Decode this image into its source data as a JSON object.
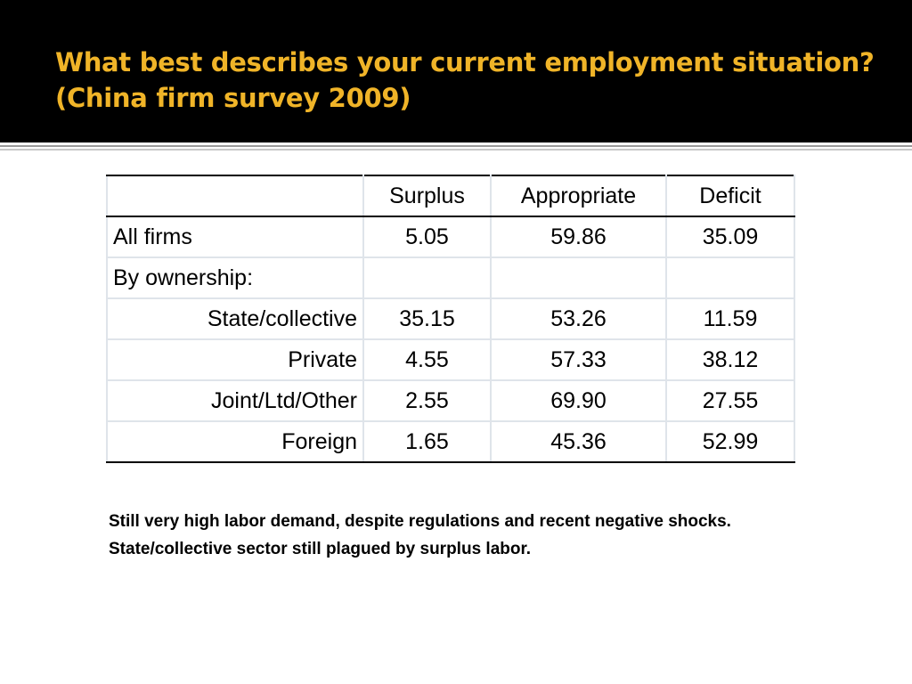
{
  "slide": {
    "title_line1": "What best describes your current employment situation?",
    "title_line2": "(China firm survey 2009)",
    "colors": {
      "title_bar": "#000000",
      "title_text": "#f0b428"
    }
  },
  "table": {
    "headers": [
      "",
      "Surplus",
      "Appropriate",
      "Deficit"
    ],
    "rows": [
      {
        "label": "All firms",
        "values": [
          "5.05",
          "59.86",
          "35.09"
        ]
      },
      {
        "label": "By ownership:",
        "values": [
          "",
          "",
          ""
        ]
      },
      {
        "label": "State/collective",
        "values": [
          "35.15",
          "53.26",
          "11.59"
        ]
      },
      {
        "label": "Private",
        "values": [
          "4.55",
          "57.33",
          "38.12"
        ]
      },
      {
        "label": "Joint/Ltd/Other",
        "values": [
          "2.55",
          "69.90",
          "27.55"
        ]
      },
      {
        "label": "Foreign",
        "values": [
          "1.65",
          "45.36",
          "52.99"
        ]
      }
    ]
  },
  "notes": {
    "line1": "Still very high labor demand, despite regulations and recent negative shocks.",
    "line2": "State/collective sector still plagued by surplus labor."
  }
}
